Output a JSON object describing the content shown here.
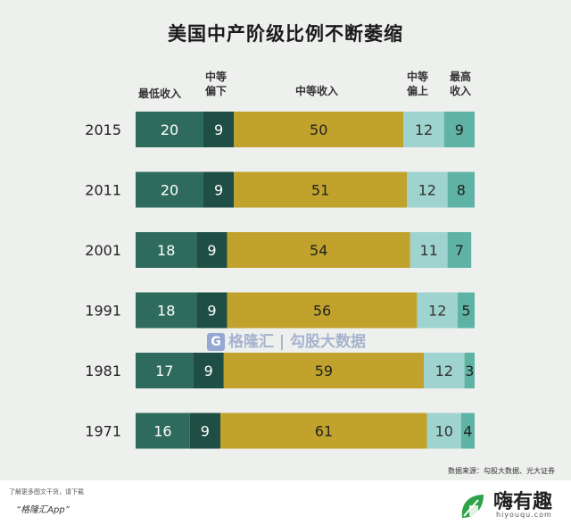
{
  "chart_data": {
    "type": "bar",
    "orientation": "horizontal",
    "stacked": true,
    "title": "美国中产阶级比例不断萎缩",
    "categories": [
      "2015",
      "2011",
      "2001",
      "1991",
      "1981",
      "1971"
    ],
    "series": [
      {
        "name": "最低收入",
        "color": "#2e6b5c",
        "values": [
          20,
          20,
          18,
          18,
          17,
          16
        ]
      },
      {
        "name": "中等\n偏下",
        "color": "#1f4f44",
        "values": [
          9,
          9,
          9,
          9,
          9,
          9
        ]
      },
      {
        "name": "中等收入",
        "color": "#c0a22c",
        "values": [
          50,
          51,
          54,
          56,
          59,
          61
        ]
      },
      {
        "name": "中等\n偏上",
        "color": "#9fd3cf",
        "values": [
          12,
          12,
          11,
          12,
          12,
          10
        ]
      },
      {
        "name": "最高\n收入",
        "color": "#5fb3a5",
        "values": [
          9,
          8,
          7,
          5,
          3,
          4
        ]
      }
    ],
    "grid": false,
    "legend": "top"
  },
  "source_note": "数据来源：勾股大数据、光大证券",
  "watermark": {
    "icon": "G",
    "text": "格隆汇 | 勾股大数据"
  },
  "footer": {
    "note": "了解更多图文干货，请下载",
    "app": "“格隆汇App”",
    "logo_text": "嗨有趣",
    "logo_url": "hiyouqu.com"
  }
}
